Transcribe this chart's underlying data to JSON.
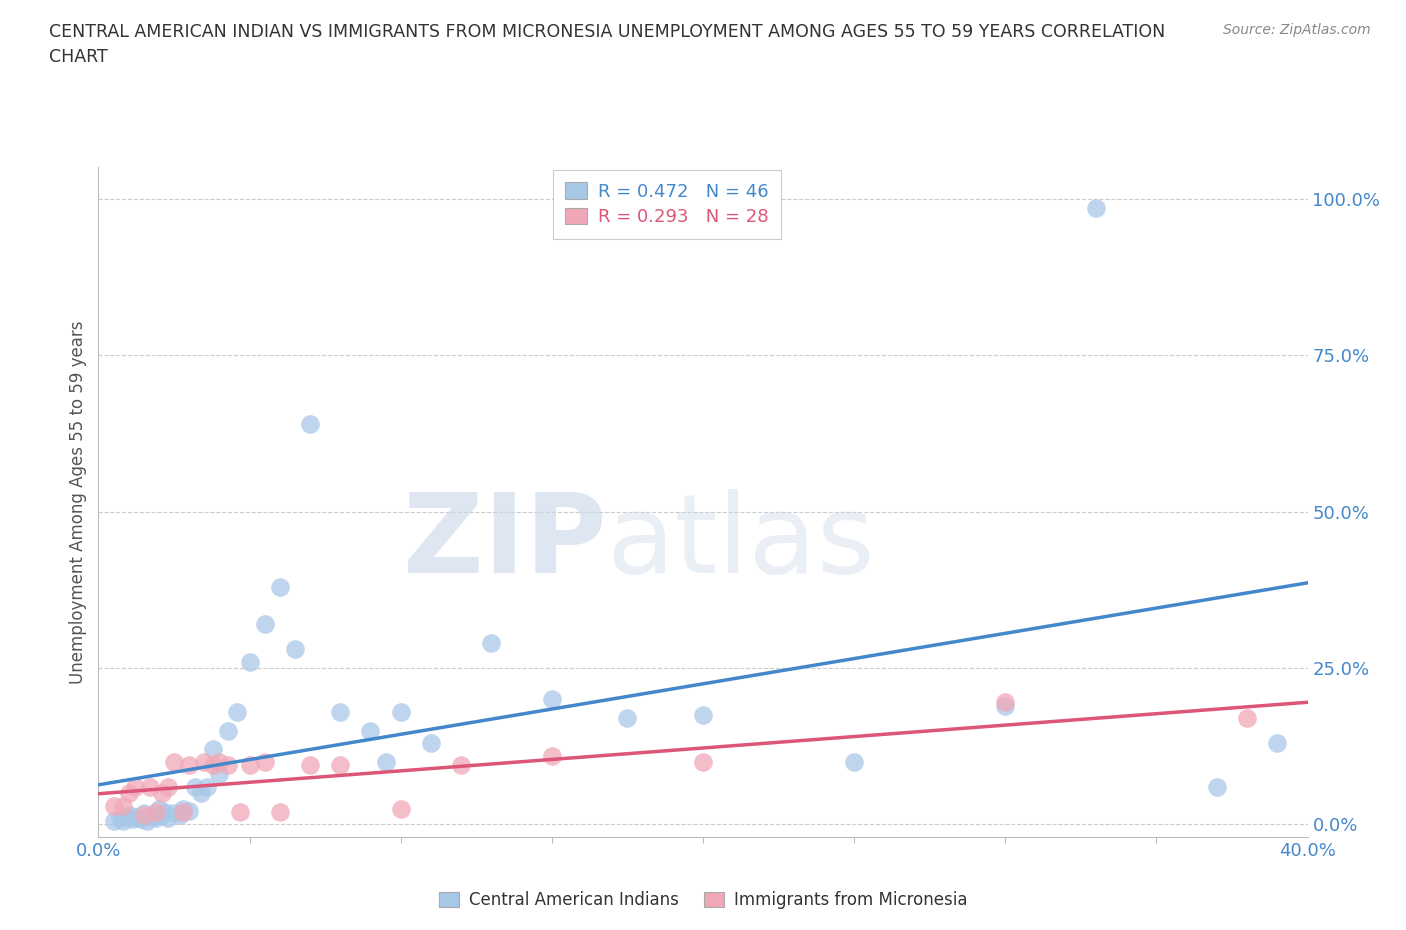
{
  "title_line1": "CENTRAL AMERICAN INDIAN VS IMMIGRANTS FROM MICRONESIA UNEMPLOYMENT AMONG AGES 55 TO 59 YEARS CORRELATION",
  "title_line2": "CHART",
  "source": "Source: ZipAtlas.com",
  "ylabel": "Unemployment Among Ages 55 to 59 years",
  "xlim": [
    0.0,
    0.4
  ],
  "ylim": [
    -0.02,
    1.05
  ],
  "xtick_labels_shown": [
    "0.0%",
    "40.0%"
  ],
  "xtick_positions_shown": [
    0.0,
    0.4
  ],
  "xtick_minor": [
    0.05,
    0.1,
    0.15,
    0.2,
    0.25,
    0.3,
    0.35
  ],
  "yticks_right": [
    0.0,
    0.25,
    0.5,
    0.75,
    1.0
  ],
  "yticklabels_right": [
    "0.0%",
    "25.0%",
    "50.0%",
    "75.0%",
    "100.0%"
  ],
  "grid_color": "#cccccc",
  "background_color": "#ffffff",
  "blue_color": "#a8c8e8",
  "pink_color": "#f0a8b8",
  "blue_line_color": "#4488cc",
  "pink_line_color": "#dd5577",
  "legend_R1": "R = 0.472",
  "legend_N1": "N = 46",
  "legend_R2": "R = 0.293",
  "legend_N2": "N = 28",
  "label1": "Central American Indians",
  "label2": "Immigrants from Micronesia",
  "watermark_zip": "ZIP",
  "watermark_atlas": "atlas",
  "blue_x": [
    0.005,
    0.007,
    0.008,
    0.01,
    0.011,
    0.012,
    0.013,
    0.014,
    0.015,
    0.016,
    0.018,
    0.019,
    0.02,
    0.021,
    0.022,
    0.023,
    0.025,
    0.027,
    0.028,
    0.03,
    0.032,
    0.034,
    0.036,
    0.038,
    0.04,
    0.043,
    0.046,
    0.05,
    0.055,
    0.06,
    0.065,
    0.07,
    0.08,
    0.09,
    0.095,
    0.1,
    0.11,
    0.13,
    0.15,
    0.175,
    0.2,
    0.25,
    0.3,
    0.33,
    0.37,
    0.39
  ],
  "blue_y": [
    0.005,
    0.01,
    0.005,
    0.015,
    0.008,
    0.012,
    0.01,
    0.008,
    0.018,
    0.005,
    0.012,
    0.01,
    0.025,
    0.015,
    0.02,
    0.01,
    0.018,
    0.015,
    0.025,
    0.022,
    0.06,
    0.05,
    0.06,
    0.12,
    0.08,
    0.15,
    0.18,
    0.26,
    0.32,
    0.38,
    0.28,
    0.64,
    0.18,
    0.15,
    0.1,
    0.18,
    0.13,
    0.29,
    0.2,
    0.17,
    0.175,
    0.1,
    0.19,
    0.985,
    0.06,
    0.13
  ],
  "pink_x": [
    0.005,
    0.008,
    0.01,
    0.012,
    0.015,
    0.017,
    0.019,
    0.021,
    0.023,
    0.025,
    0.028,
    0.03,
    0.035,
    0.038,
    0.04,
    0.043,
    0.047,
    0.05,
    0.055,
    0.06,
    0.07,
    0.08,
    0.1,
    0.12,
    0.15,
    0.2,
    0.3,
    0.38
  ],
  "pink_y": [
    0.03,
    0.03,
    0.05,
    0.06,
    0.015,
    0.06,
    0.02,
    0.05,
    0.06,
    0.1,
    0.02,
    0.095,
    0.1,
    0.095,
    0.1,
    0.095,
    0.02,
    0.095,
    0.1,
    0.02,
    0.095,
    0.095,
    0.025,
    0.095,
    0.11,
    0.1,
    0.195,
    0.17
  ]
}
